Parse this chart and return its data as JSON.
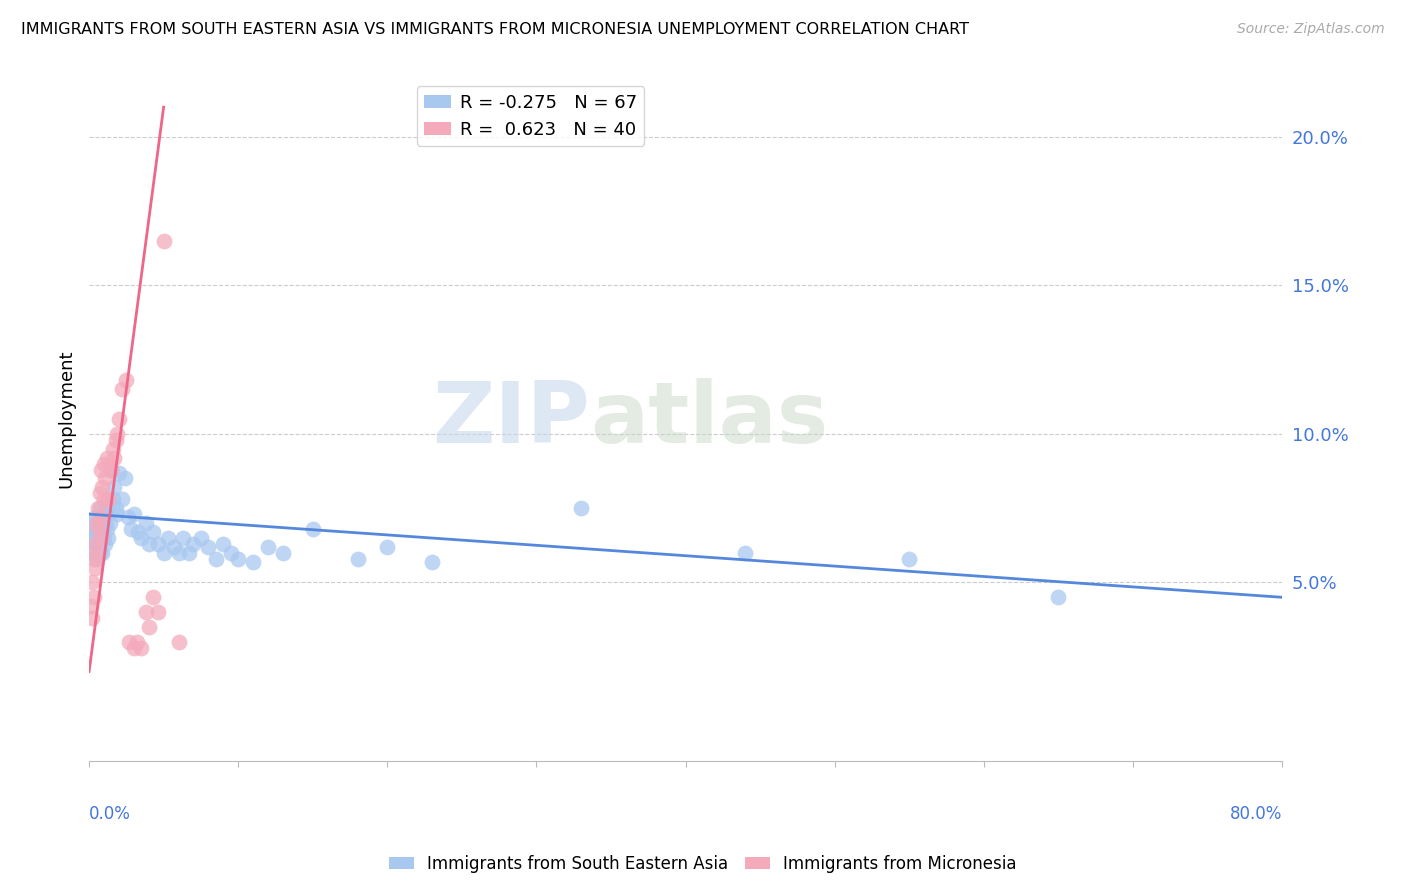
{
  "title": "IMMIGRANTS FROM SOUTH EASTERN ASIA VS IMMIGRANTS FROM MICRONESIA UNEMPLOYMENT CORRELATION CHART",
  "source": "Source: ZipAtlas.com",
  "ylabel": "Unemployment",
  "right_yticks": [
    0.05,
    0.1,
    0.15,
    0.2
  ],
  "right_yticklabels": [
    "5.0%",
    "10.0%",
    "15.0%",
    "20.0%"
  ],
  "legend_blue_r": "-0.275",
  "legend_blue_n": "67",
  "legend_pink_r": "0.623",
  "legend_pink_n": "40",
  "blue_color": "#A8C8F0",
  "pink_color": "#F4AABB",
  "blue_line_color": "#5588DD",
  "pink_line_color": "#EE6688",
  "watermark_zip": "ZIP",
  "watermark_atlas": "atlas",
  "xlim": [
    0.0,
    0.8
  ],
  "ylim": [
    -0.01,
    0.22
  ],
  "blue_scatter_x": [
    0.001,
    0.002,
    0.002,
    0.003,
    0.003,
    0.004,
    0.004,
    0.005,
    0.005,
    0.006,
    0.006,
    0.007,
    0.007,
    0.007,
    0.008,
    0.008,
    0.009,
    0.009,
    0.01,
    0.01,
    0.011,
    0.011,
    0.012,
    0.012,
    0.013,
    0.014,
    0.015,
    0.016,
    0.017,
    0.018,
    0.019,
    0.02,
    0.022,
    0.024,
    0.026,
    0.028,
    0.03,
    0.033,
    0.035,
    0.038,
    0.04,
    0.043,
    0.046,
    0.05,
    0.053,
    0.057,
    0.06,
    0.063,
    0.067,
    0.07,
    0.075,
    0.08,
    0.085,
    0.09,
    0.095,
    0.1,
    0.11,
    0.12,
    0.13,
    0.15,
    0.18,
    0.2,
    0.23,
    0.33,
    0.44,
    0.55,
    0.65
  ],
  "blue_scatter_y": [
    0.065,
    0.07,
    0.06,
    0.068,
    0.063,
    0.072,
    0.065,
    0.068,
    0.058,
    0.07,
    0.063,
    0.075,
    0.068,
    0.06,
    0.072,
    0.065,
    0.068,
    0.06,
    0.073,
    0.065,
    0.07,
    0.063,
    0.075,
    0.068,
    0.065,
    0.07,
    0.088,
    0.078,
    0.082,
    0.075,
    0.073,
    0.087,
    0.078,
    0.085,
    0.072,
    0.068,
    0.073,
    0.067,
    0.065,
    0.07,
    0.063,
    0.067,
    0.063,
    0.06,
    0.065,
    0.062,
    0.06,
    0.065,
    0.06,
    0.063,
    0.065,
    0.062,
    0.058,
    0.063,
    0.06,
    0.058,
    0.057,
    0.062,
    0.06,
    0.068,
    0.058,
    0.062,
    0.057,
    0.075,
    0.06,
    0.058,
    0.045
  ],
  "pink_scatter_x": [
    0.001,
    0.002,
    0.002,
    0.003,
    0.003,
    0.004,
    0.004,
    0.005,
    0.005,
    0.006,
    0.006,
    0.007,
    0.007,
    0.008,
    0.008,
    0.009,
    0.01,
    0.01,
    0.011,
    0.012,
    0.013,
    0.014,
    0.015,
    0.016,
    0.017,
    0.018,
    0.019,
    0.02,
    0.022,
    0.025,
    0.027,
    0.03,
    0.032,
    0.035,
    0.038,
    0.04,
    0.043,
    0.046,
    0.05,
    0.06
  ],
  "pink_scatter_y": [
    0.042,
    0.05,
    0.038,
    0.058,
    0.045,
    0.063,
    0.055,
    0.07,
    0.06,
    0.068,
    0.075,
    0.08,
    0.072,
    0.088,
    0.065,
    0.082,
    0.078,
    0.09,
    0.085,
    0.092,
    0.078,
    0.09,
    0.088,
    0.095,
    0.092,
    0.098,
    0.1,
    0.105,
    0.115,
    0.118,
    0.03,
    0.028,
    0.03,
    0.028,
    0.04,
    0.035,
    0.045,
    0.04,
    0.165,
    0.03
  ],
  "pink_line_x_start": 0.0,
  "pink_line_x_end": 0.05,
  "blue_line_x_start": 0.0,
  "blue_line_x_end": 0.8,
  "blue_line_y_start": 0.073,
  "blue_line_y_end": 0.045,
  "pink_line_y_start": 0.02,
  "pink_line_y_end": 0.21
}
